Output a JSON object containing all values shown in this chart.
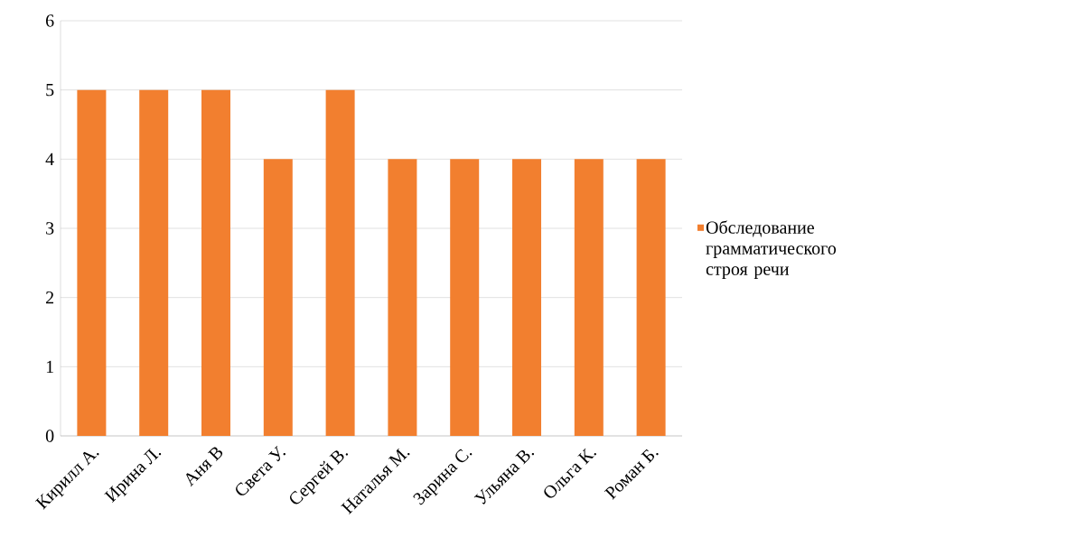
{
  "chart_data": {
    "type": "bar",
    "categories": [
      "Кирилл А.",
      "Ирина Л.",
      "Аня В",
      "Света У.",
      "Сергей В.",
      "Наталья М.",
      "Зарина С.",
      "Ульяна В.",
      "Ольга К.",
      "Роман Б."
    ],
    "series": [
      {
        "name": "Обследование грамматического строя речи",
        "color": "#f27f2f",
        "values": [
          5,
          5,
          5,
          4,
          5,
          4,
          4,
          4,
          4,
          4
        ]
      }
    ],
    "ylim": [
      0,
      6
    ],
    "yticks": [
      0,
      1,
      2,
      3,
      4,
      5,
      6
    ],
    "grid": "y",
    "legend": "right"
  }
}
